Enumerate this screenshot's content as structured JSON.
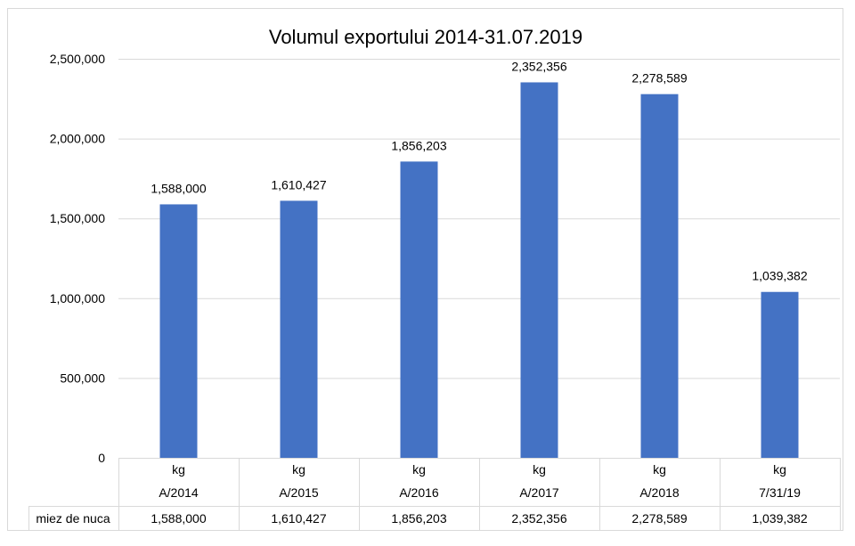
{
  "chart_data": {
    "type": "bar",
    "title": "Volumul exportului 2014-31.07.2019",
    "xlabel": "",
    "ylabel": "",
    "ylim": [
      0,
      2500000
    ],
    "yticks": [
      0,
      500000,
      1000000,
      1500000,
      2000000,
      2500000
    ],
    "ytick_labels": [
      "0",
      "500,000",
      "1,000,000",
      "1,500,000",
      "2,000,000",
      "2,500,000"
    ],
    "grid": true,
    "bar_color": "#4472C4",
    "categories_unit": [
      "kg",
      "kg",
      "kg",
      "kg",
      "kg",
      "kg"
    ],
    "categories": [
      "A/2014",
      "A/2015",
      "A/2016",
      "A/2017",
      "A/2018",
      "7/31/19"
    ],
    "series": [
      {
        "name": "miez de nuca",
        "values": [
          1588000,
          1610427,
          1856203,
          2352356,
          2278589,
          1039382
        ],
        "labels": [
          "1,588,000",
          "1,610,427",
          "1,856,203",
          "2,352,356",
          "2,278,589",
          "1,039,382"
        ]
      }
    ]
  }
}
